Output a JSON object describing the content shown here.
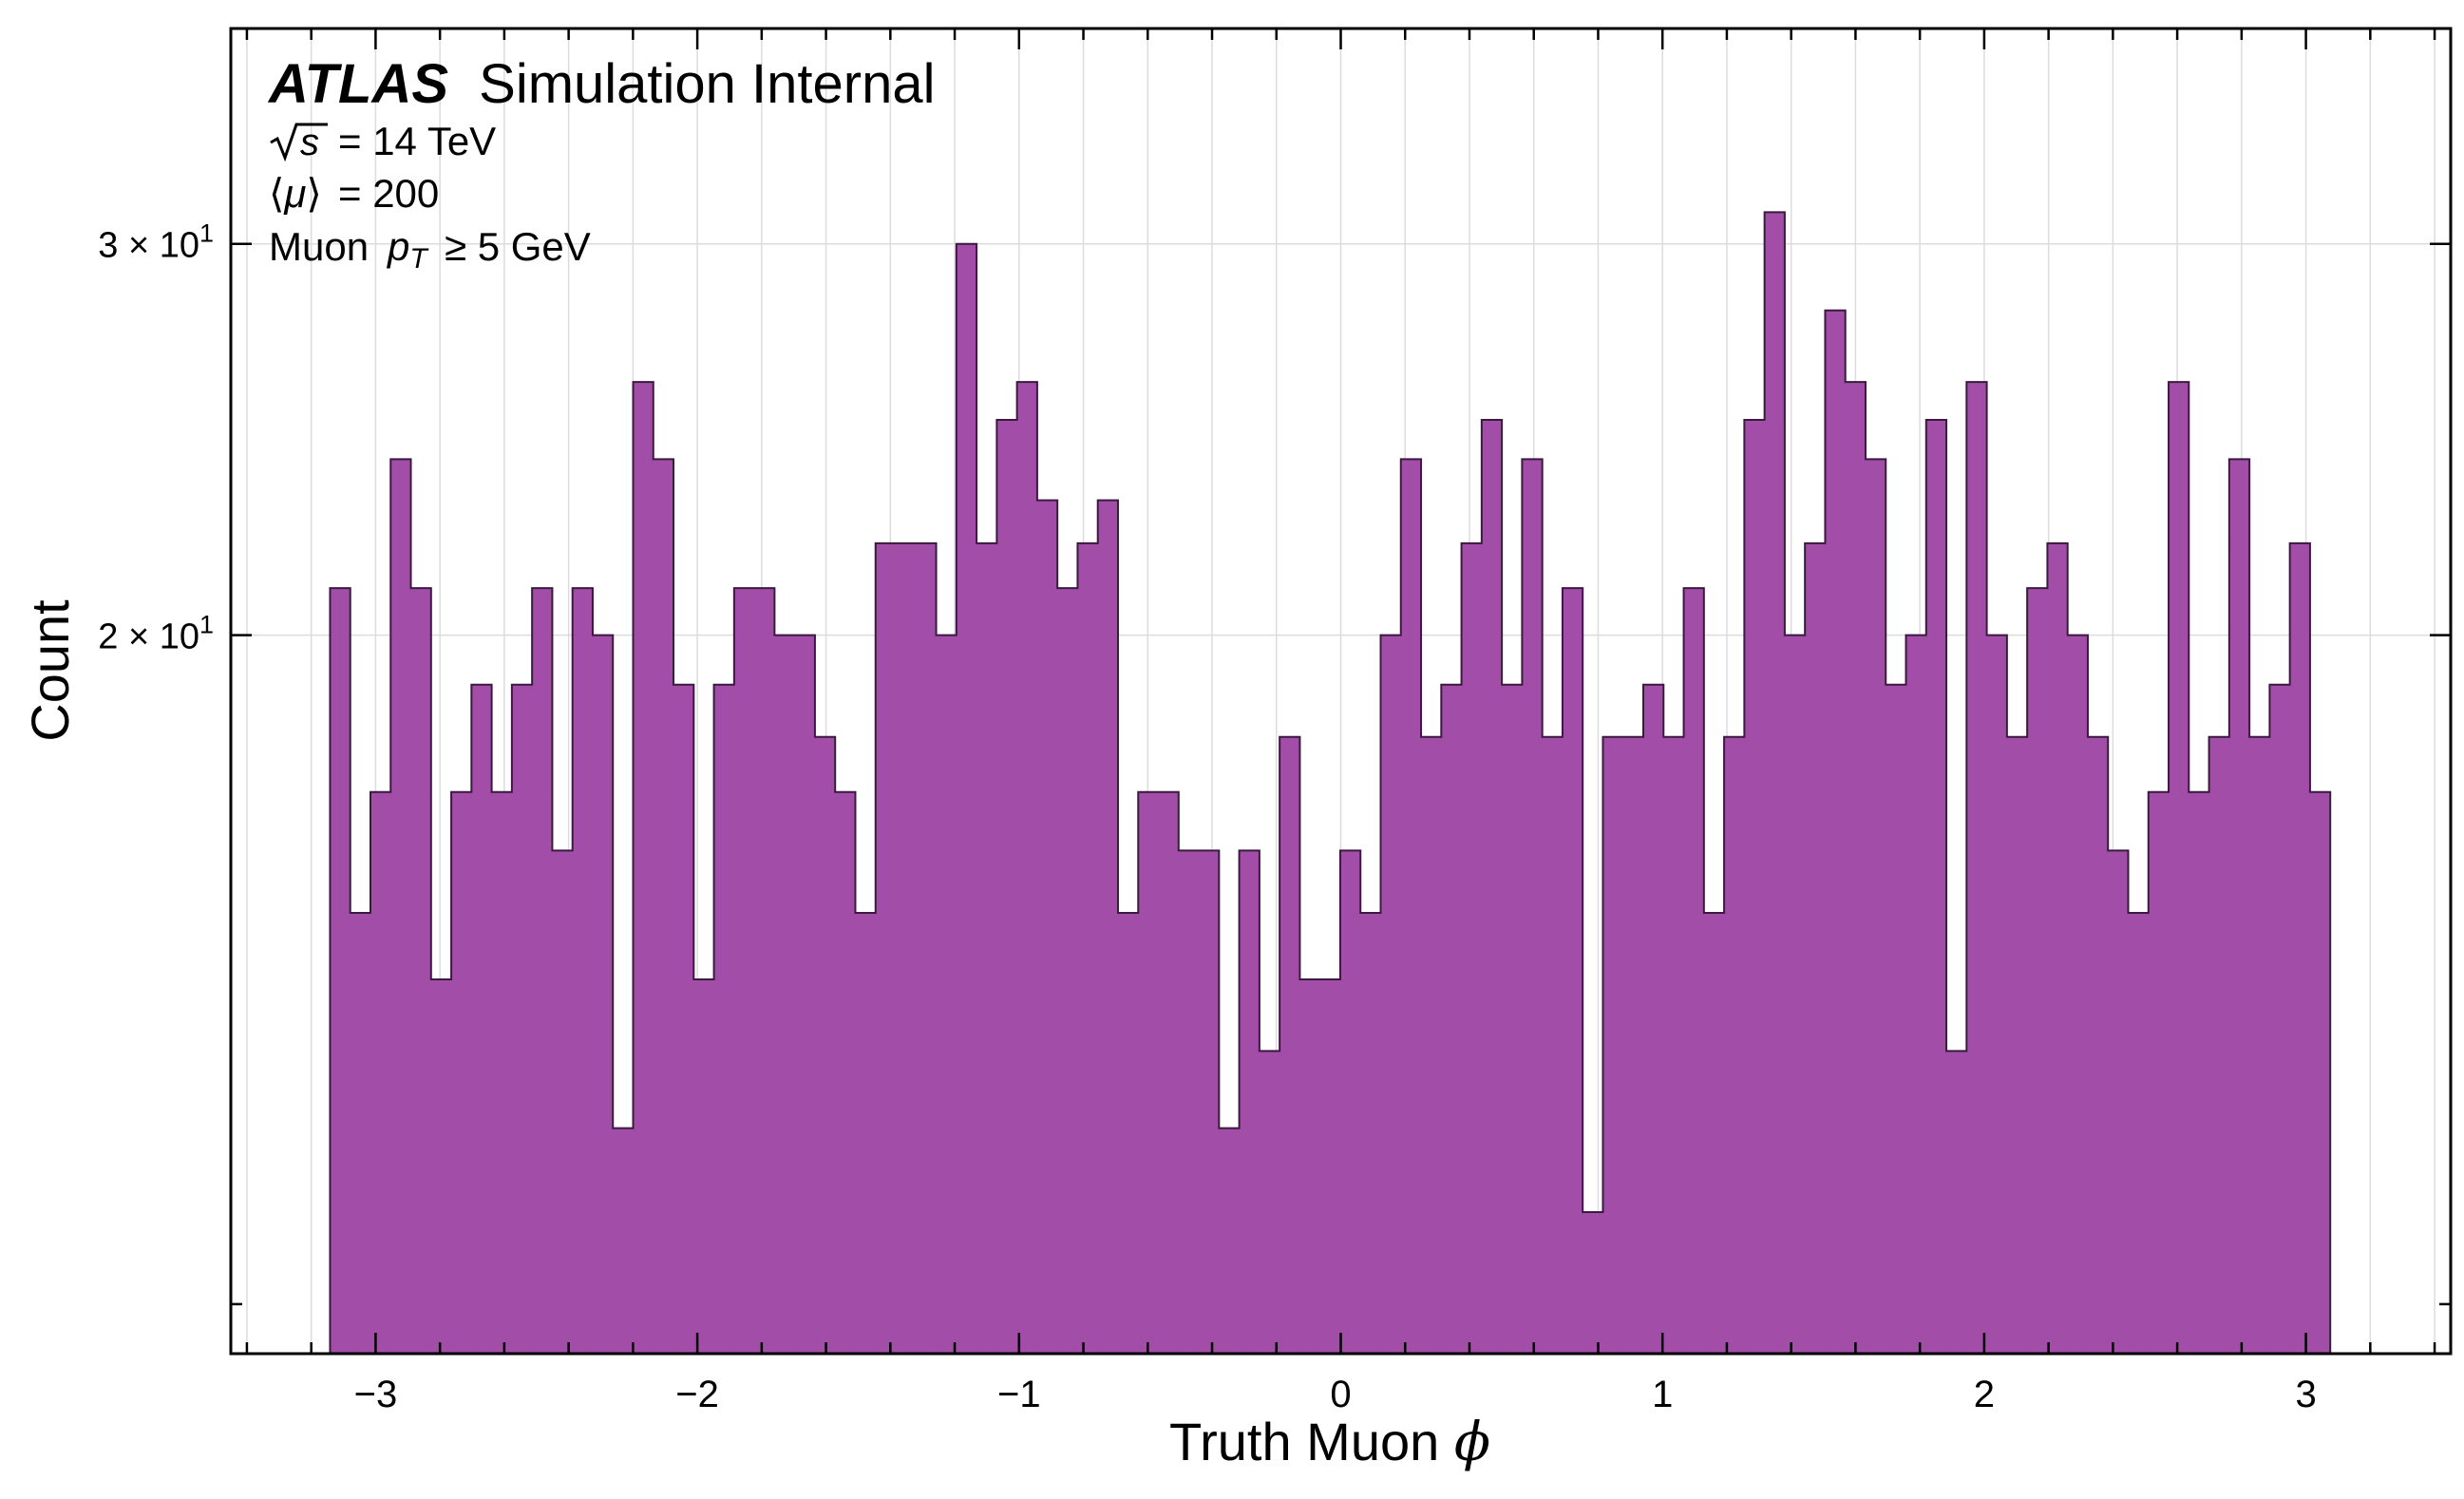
{
  "chart_data": {
    "type": "histogram",
    "title": "",
    "xlabel_text": "Truth Muon",
    "xlabel_symbol": "ϕ",
    "ylabel": "Count",
    "xlim": [
      -3.45,
      3.45
    ],
    "ylim": [
      9.5,
      37.5
    ],
    "yscale": "log",
    "grid": true,
    "bin_width": 0.0628,
    "x_start": -3.1416,
    "fill_color": "#a24da8",
    "edge_color": "#3a1a3e",
    "x_ticks": [
      {
        "value": -3,
        "label": "−3"
      },
      {
        "value": -2,
        "label": "−2"
      },
      {
        "value": -1,
        "label": "−1"
      },
      {
        "value": 0,
        "label": "0"
      },
      {
        "value": 1,
        "label": "1"
      },
      {
        "value": 2,
        "label": "2"
      },
      {
        "value": 3,
        "label": "3"
      }
    ],
    "y_ticks": [
      {
        "value": 30,
        "mantissa": "3",
        "base": "10",
        "exp": "1"
      },
      {
        "value": 20,
        "mantissa": "2",
        "base": "10",
        "exp": "1"
      }
    ],
    "annotations": {
      "experiment": "ATLAS",
      "status": "Simulation Internal",
      "energy": "= 14 TeV",
      "pileup": "= 200",
      "cut_prefix": "Muon",
      "cut_suffix": "≥ 5 GeV"
    },
    "values": [
      21,
      15,
      17,
      24,
      21,
      14,
      17,
      19,
      17,
      19,
      21,
      16,
      21,
      20,
      12,
      26,
      24,
      19,
      14,
      19,
      21,
      21,
      20,
      20,
      18,
      17,
      15,
      22,
      22,
      22,
      20,
      30,
      22,
      25,
      26,
      23,
      21,
      22,
      23,
      15,
      17,
      17,
      16,
      16,
      12,
      16,
      13,
      18,
      14,
      14,
      16,
      15,
      20,
      24,
      18,
      19,
      22,
      25,
      19,
      24,
      18,
      21,
      11,
      18,
      18,
      19,
      18,
      21,
      15,
      18,
      25,
      31,
      20,
      22,
      28,
      26,
      24,
      19,
      20,
      25,
      13,
      26,
      20,
      18,
      21,
      22,
      20,
      18,
      16,
      15,
      17,
      26,
      17,
      18,
      24,
      18,
      19,
      22,
      17
    ]
  }
}
